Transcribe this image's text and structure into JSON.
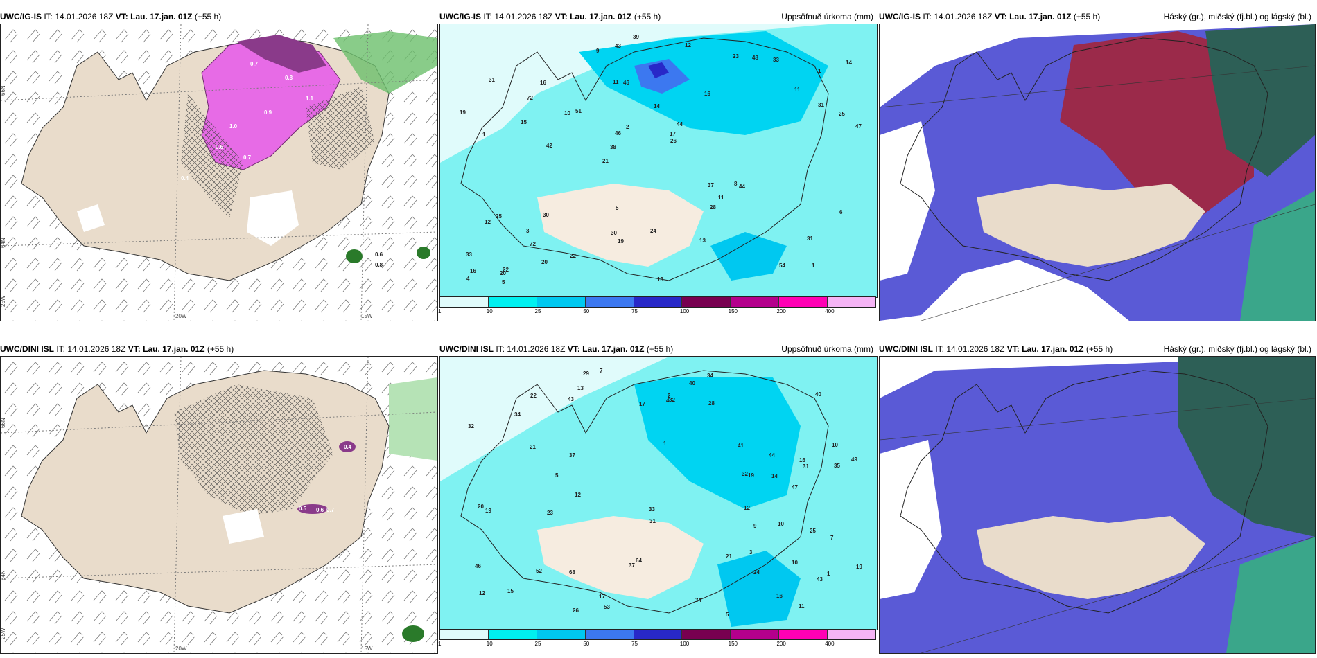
{
  "panels": {
    "top_wind": {
      "model": "UWC/IG-IS",
      "it_label": "IT:",
      "it_value": "14.01.2026 18Z",
      "vt_label": "VT:",
      "vt_value": "Lau. 17.jan. 01Z",
      "lead": "(+55 h)",
      "right_label": ""
    },
    "top_precip": {
      "model": "UWC/IG-IS",
      "it_label": "IT:",
      "it_value": "14.01.2026 18Z",
      "vt_label": "VT:",
      "vt_value": "Lau. 17.jan. 01Z",
      "lead": "(+55 h)",
      "right_label": "Uppsöfnuð úrkoma (mm)"
    },
    "top_cloud": {
      "model": "UWC/IG-IS",
      "it_label": "IT:",
      "it_value": "14.01.2026 18Z",
      "vt_label": "VT:",
      "vt_value": "Lau. 17.jan. 01Z",
      "lead": "(+55 h)",
      "right_label": "Háský (gr.), miðský (fj.bl.) og lágský (bl.)"
    },
    "bottom_wind": {
      "model": "UWC/DINI ISL",
      "it_label": "IT:",
      "it_value": "14.01.2026 18Z",
      "vt_label": "VT:",
      "vt_value": "Lau. 17.jan. 01Z",
      "lead": "(+55 h)",
      "right_label": ""
    },
    "bottom_precip": {
      "model": "UWC/DINI ISL",
      "it_label": "IT:",
      "it_value": "14.01.2026 18Z",
      "vt_label": "VT:",
      "vt_value": "Lau. 17.jan. 01Z",
      "lead": "(+55 h)",
      "right_label": "Uppsöfnuð úrkoma (mm)"
    },
    "bottom_cloud": {
      "model": "UWC/DINI ISL",
      "it_label": "IT:",
      "it_value": "14.01.2026 18Z",
      "vt_label": "VT:",
      "vt_value": "Lau. 17.jan. 01Z",
      "lead": "(+55 h)",
      "right_label": "Háský (gr.), miðský (fj.bl.) og lágský (bl.)"
    }
  },
  "axes": {
    "lat_66": "66N",
    "lat_64": "64N",
    "lon_25": "25W",
    "lon_20": "20W",
    "lon_15": "15W"
  },
  "colorbar": {
    "ticks": [
      "1",
      "10",
      "25",
      "50",
      "75",
      "100",
      "150",
      "200",
      "400"
    ],
    "colors": [
      "#e0fbfb",
      "#00f0f0",
      "#00c8f0",
      "#3c78f0",
      "#2828c8",
      "#780050",
      "#b4008c",
      "#ff00b4",
      "#f5b4f5"
    ]
  },
  "top_wind_values": [
    "0.7",
    "0.8",
    "1.1",
    "0.9",
    "1.0",
    "0.6",
    "0.4",
    "0.7",
    "0.6",
    "0.8"
  ],
  "bottom_wind_values": [
    "0.4",
    "0.5",
    "0.6",
    "0.7"
  ],
  "top_precip_values": [
    "1",
    "1",
    "1",
    "21",
    "16",
    "22",
    "11",
    "14",
    "25",
    "51",
    "33",
    "72",
    "46",
    "44",
    "44",
    "31",
    "43",
    "47",
    "37",
    "31",
    "38",
    "30",
    "46",
    "16",
    "23",
    "30",
    "54",
    "31",
    "8",
    "13",
    "10",
    "15",
    "28",
    "20",
    "25",
    "17",
    "16",
    "19",
    "26",
    "12",
    "11",
    "14",
    "11",
    "13",
    "3",
    "5",
    "4",
    "24",
    "33",
    "39",
    "42",
    "19",
    "72",
    "48",
    "20",
    "12",
    "9",
    "2",
    "6",
    "5",
    "22"
  ],
  "bottom_precip_values": [
    "10",
    "10",
    "1",
    "1",
    "12",
    "13",
    "16",
    "68",
    "40",
    "21",
    "35",
    "32",
    "47",
    "53",
    "46",
    "34",
    "43",
    "43",
    "64",
    "31",
    "20",
    "19",
    "34",
    "32",
    "17",
    "37",
    "40",
    "28",
    "41",
    "19",
    "23",
    "24",
    "26",
    "33",
    "25",
    "16",
    "19",
    "17",
    "11",
    "12",
    "10",
    "14",
    "4",
    "5",
    "7",
    "9",
    "15",
    "34",
    "37",
    "44",
    "52",
    "31",
    "32",
    "49",
    "21",
    "12",
    "29",
    "22",
    "5",
    "2",
    "7",
    "3"
  ]
}
